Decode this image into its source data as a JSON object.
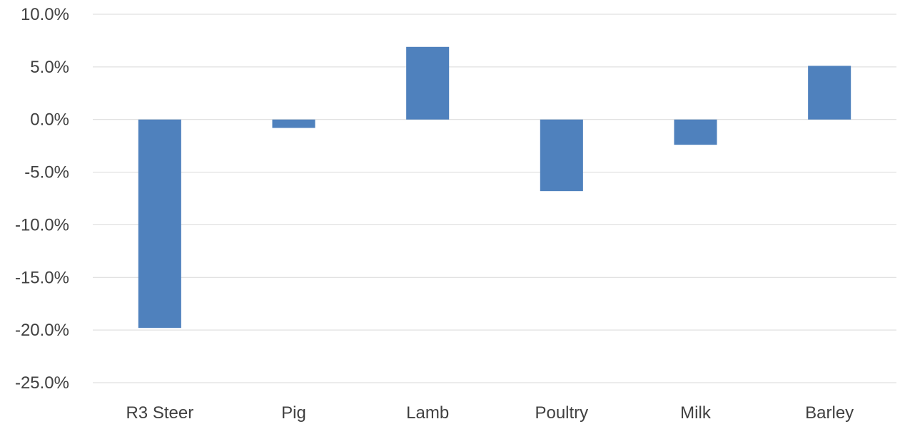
{
  "chart_data": {
    "type": "bar",
    "categories": [
      "R3 Steer",
      "Pig",
      "Lamb",
      "Poultry",
      "Milk",
      "Barley"
    ],
    "values": [
      -19.8,
      -0.8,
      6.9,
      -6.8,
      -2.4,
      5.1
    ],
    "value_unit": "percent",
    "title": "",
    "xlabel": "",
    "ylabel": "",
    "ylim": [
      -25,
      10
    ],
    "yticks": [
      10,
      5,
      0,
      -5,
      -10,
      -15,
      -20,
      -25
    ],
    "ytick_labels": [
      "10.0%",
      "5.0%",
      "0.0%",
      "-5.0%",
      "-10.0%",
      "-15.0%",
      "-20.0%",
      "-25.0%"
    ],
    "grid": true,
    "legend": "none",
    "bar_color": "#4f81bd",
    "grid_color": "#d9d9d9",
    "text_color": "#404040"
  }
}
